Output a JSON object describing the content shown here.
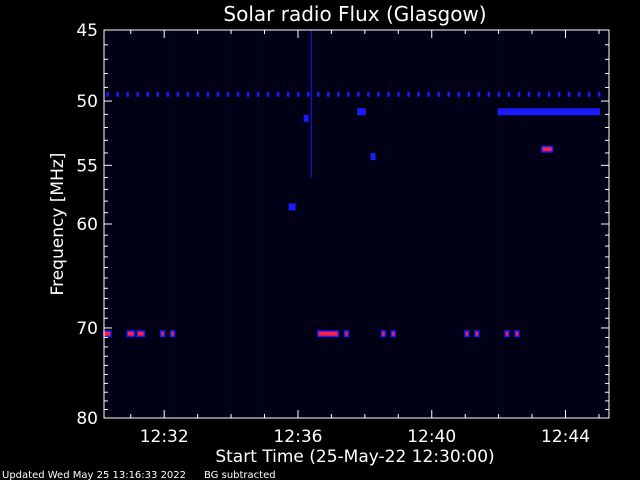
{
  "chart_data": {
    "type": "heatmap",
    "title": "Solar radio Flux (Glasgow)",
    "xlabel": "Start Time (25-May-22 12:30:00)",
    "ylabel": "Frequency [MHz]",
    "x_tick_labels": [
      "12:32",
      "12:36",
      "12:40",
      "12:44"
    ],
    "x_ticks_min": [
      32,
      36,
      40,
      44
    ],
    "xlim_min": [
      30.2,
      45.3
    ],
    "y_tick_labels": [
      "45",
      "50",
      "55",
      "60",
      "70",
      "80"
    ],
    "y_ticks": [
      45,
      50,
      55,
      60,
      70,
      80
    ],
    "ylim": [
      80,
      45
    ],
    "y_scale": "log",
    "colors": {
      "background": "#000010",
      "emission_low": "#1a1aff",
      "emission_high": "#ff2040"
    },
    "features": [
      {
        "kind": "periodic-dots",
        "freq_mhz": 49.5,
        "from_min": 30.3,
        "to_min": 45.1,
        "step_min": 0.3,
        "intensity": "low"
      },
      {
        "kind": "burst",
        "freq_mhz": 50.8,
        "from_min": 37.8,
        "to_min": 38.0,
        "intensity": "low"
      },
      {
        "kind": "burst",
        "freq_mhz": 50.8,
        "from_min": 42.0,
        "to_min": 45.0,
        "intensity": "low"
      },
      {
        "kind": "burst",
        "freq_mhz": 53.7,
        "from_min": 43.3,
        "to_min": 43.6,
        "intensity": "high"
      },
      {
        "kind": "burst",
        "freq_mhz": 51.3,
        "from_min": 36.2,
        "to_min": 36.25,
        "intensity": "low"
      },
      {
        "kind": "burst",
        "freq_mhz": 54.3,
        "from_min": 38.2,
        "to_min": 38.25,
        "intensity": "low"
      },
      {
        "kind": "burst",
        "freq_mhz": 58.5,
        "from_min": 35.75,
        "to_min": 35.9,
        "intensity": "low"
      },
      {
        "kind": "vertical-streak",
        "time_min": 36.4,
        "from_mhz": 45,
        "to_mhz": 56,
        "intensity": "low"
      },
      {
        "kind": "burst",
        "freq_mhz": 70.6,
        "from_min": 30.2,
        "to_min": 30.4,
        "intensity": "high"
      },
      {
        "kind": "burst",
        "freq_mhz": 70.6,
        "from_min": 30.9,
        "to_min": 31.1,
        "intensity": "high"
      },
      {
        "kind": "burst",
        "freq_mhz": 70.6,
        "from_min": 31.2,
        "to_min": 31.4,
        "intensity": "high"
      },
      {
        "kind": "burst",
        "freq_mhz": 70.6,
        "from_min": 31.9,
        "to_min": 32.0,
        "intensity": "high"
      },
      {
        "kind": "burst",
        "freq_mhz": 70.6,
        "from_min": 32.2,
        "to_min": 32.3,
        "intensity": "high"
      },
      {
        "kind": "burst",
        "freq_mhz": 70.6,
        "from_min": 36.6,
        "to_min": 37.2,
        "intensity": "high"
      },
      {
        "kind": "burst",
        "freq_mhz": 70.6,
        "from_min": 37.4,
        "to_min": 37.5,
        "intensity": "high"
      },
      {
        "kind": "burst",
        "freq_mhz": 70.6,
        "from_min": 38.5,
        "to_min": 38.6,
        "intensity": "high"
      },
      {
        "kind": "burst",
        "freq_mhz": 70.6,
        "from_min": 38.8,
        "to_min": 38.9,
        "intensity": "high"
      },
      {
        "kind": "burst",
        "freq_mhz": 70.6,
        "from_min": 41.0,
        "to_min": 41.1,
        "intensity": "high"
      },
      {
        "kind": "burst",
        "freq_mhz": 70.6,
        "from_min": 41.3,
        "to_min": 41.4,
        "intensity": "high"
      },
      {
        "kind": "burst",
        "freq_mhz": 70.6,
        "from_min": 42.2,
        "to_min": 42.3,
        "intensity": "high"
      },
      {
        "kind": "burst",
        "freq_mhz": 70.6,
        "from_min": 42.5,
        "to_min": 42.6,
        "intensity": "high"
      }
    ]
  },
  "footer": {
    "updated": "Updated Wed May 25 13:16:33 2022",
    "note": "BG subtracted"
  }
}
